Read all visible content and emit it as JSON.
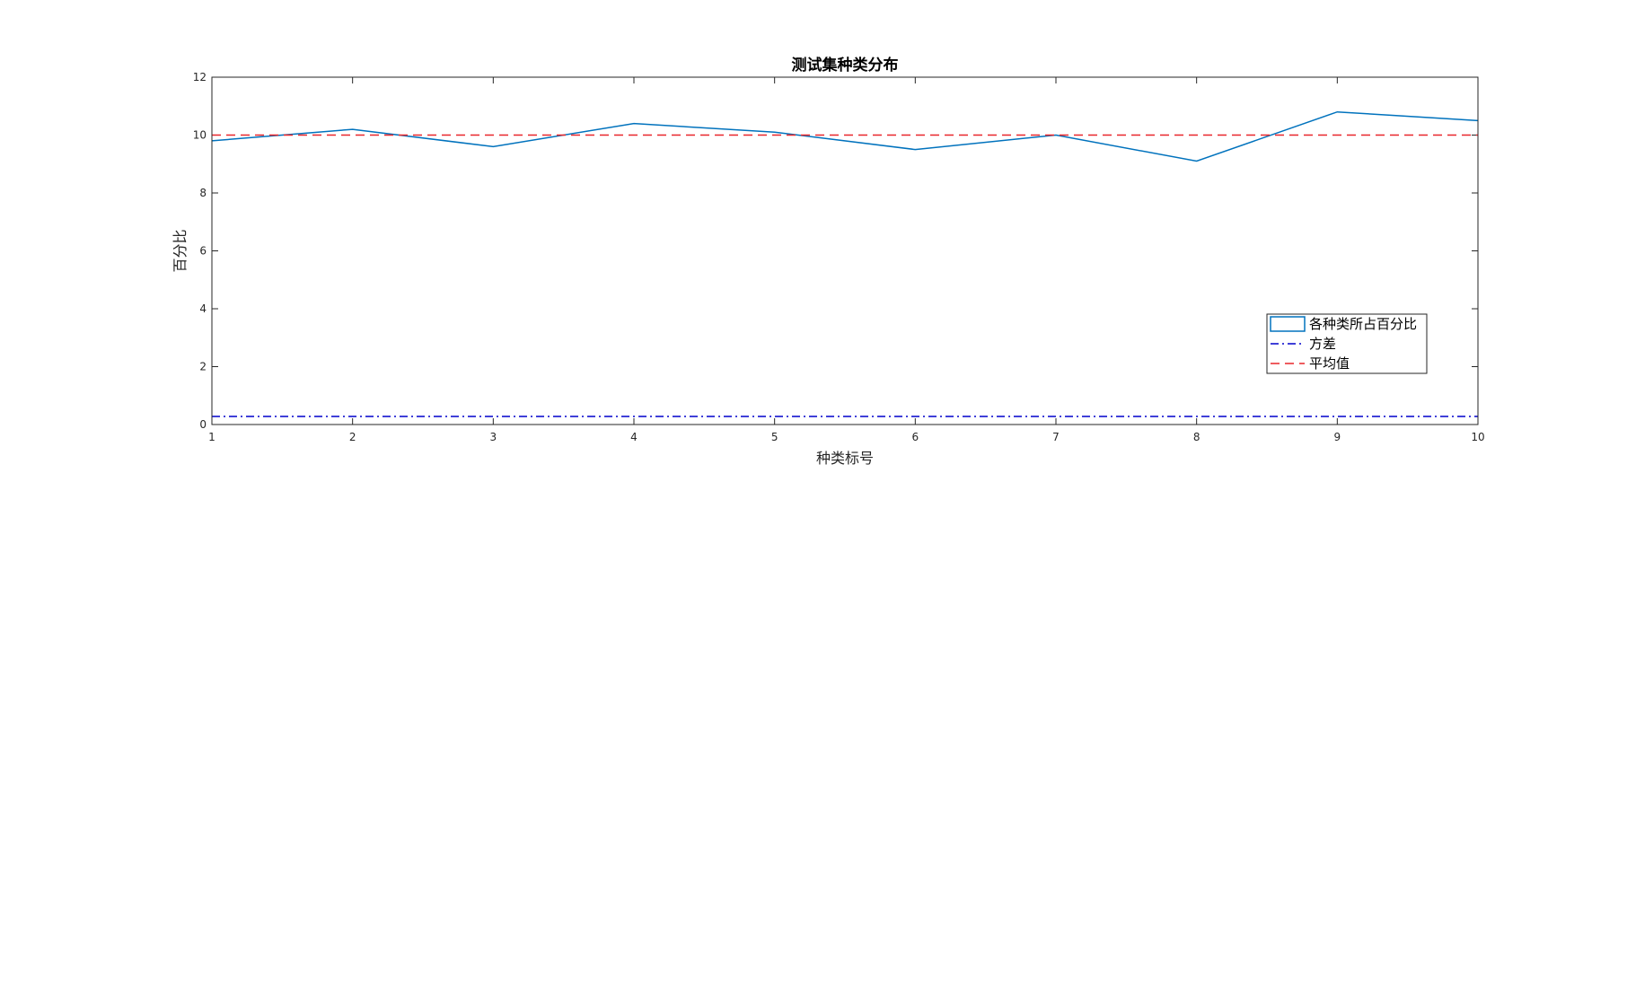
{
  "chart_data": {
    "type": "line",
    "title": "测试集种类分布",
    "xlabel": "种类标号",
    "ylabel": "百分比",
    "xlim": [
      1,
      10
    ],
    "ylim": [
      0,
      12
    ],
    "xticks": [
      1,
      2,
      3,
      4,
      5,
      6,
      7,
      8,
      9,
      10
    ],
    "yticks": [
      0,
      2,
      4,
      6,
      8,
      10,
      12
    ],
    "grid": false,
    "legend_position": "lower-right",
    "x": [
      1,
      2,
      3,
      4,
      5,
      6,
      7,
      8,
      9,
      10
    ],
    "series": [
      {
        "name": "各种类所占百分比",
        "style": "solid",
        "color": "#0072BD",
        "values": [
          9.8,
          10.2,
          9.6,
          10.4,
          10.1,
          9.5,
          10.0,
          9.1,
          10.8,
          10.5
        ]
      },
      {
        "name": "方差",
        "style": "dash-dot",
        "color": "#0000CC",
        "values": [
          0.28,
          0.28,
          0.28,
          0.28,
          0.28,
          0.28,
          0.28,
          0.28,
          0.28,
          0.28
        ]
      },
      {
        "name": "平均值",
        "style": "dashed",
        "color": "#E8262A",
        "values": [
          10,
          10,
          10,
          10,
          10,
          10,
          10,
          10,
          10,
          10
        ]
      }
    ]
  }
}
